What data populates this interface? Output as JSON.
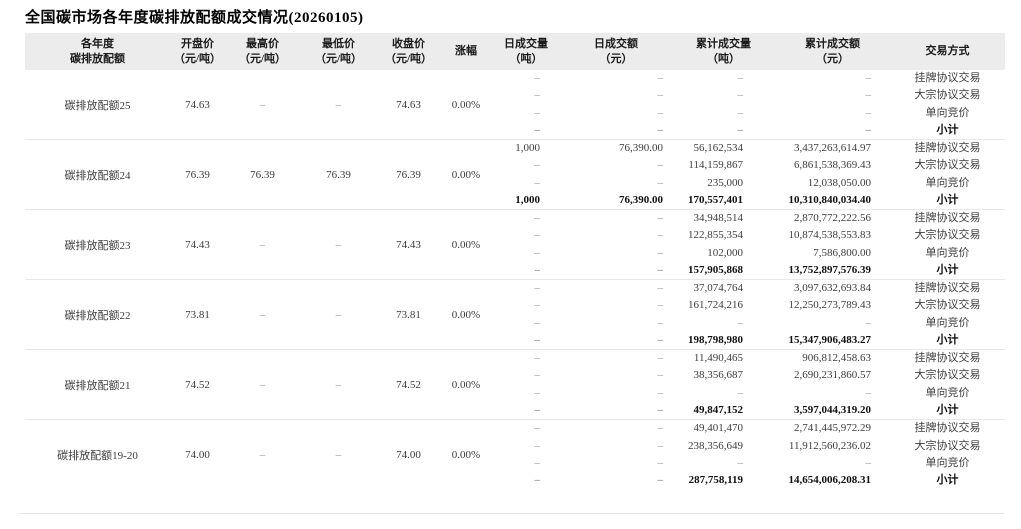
{
  "title": "全国碳市场各年度碳排放配额成交情况(20260105)",
  "colors": {
    "header_bg": "#ececec",
    "header_text": "#1a1a1a",
    "text": "#3d3d3d",
    "bold_text": "#111111",
    "dash": "#8c8c8c",
    "border": "#e8e8e8"
  },
  "table": {
    "headers": [
      {
        "id": "product",
        "line1": "各年度",
        "line2": "碳排放配额"
      },
      {
        "id": "open-price",
        "line1": "开盘价",
        "line2": "（元/吨）"
      },
      {
        "id": "high-price",
        "line1": "最高价",
        "line2": "（元/吨）"
      },
      {
        "id": "low-price",
        "line1": "最低价",
        "line2": "（元/吨）"
      },
      {
        "id": "close-price",
        "line1": "收盘价",
        "line2": "（元/吨）"
      },
      {
        "id": "change",
        "line1": "涨幅",
        "line2": ""
      },
      {
        "id": "daily-volume",
        "line1": "日成交量",
        "line2": "（吨）"
      },
      {
        "id": "daily-amount",
        "line1": "日成交额",
        "line2": "（元）"
      },
      {
        "id": "cum-volume",
        "line1": "累计成交量",
        "line2": "（吨）"
      },
      {
        "id": "cum-amount",
        "line1": "累计成交额",
        "line2": "（元）"
      },
      {
        "id": "trade-type",
        "line1": "交易方式",
        "line2": ""
      }
    ],
    "blocks": [
      {
        "product": "碳排放配额25",
        "open": "74.63",
        "high": "–",
        "low": "–",
        "close": "74.63",
        "change": "0.00%",
        "rows": [
          {
            "daily_volume": "–",
            "daily_amount": "–",
            "cum_volume": "–",
            "cum_amount": "–",
            "trade_type": "挂牌协议交易",
            "bold": false
          },
          {
            "daily_volume": "–",
            "daily_amount": "–",
            "cum_volume": "–",
            "cum_amount": "–",
            "trade_type": "大宗协议交易",
            "bold": false
          },
          {
            "daily_volume": "–",
            "daily_amount": "–",
            "cum_volume": "–",
            "cum_amount": "–",
            "trade_type": "单向竞价",
            "bold": false
          },
          {
            "daily_volume": "–",
            "daily_amount": "–",
            "cum_volume": "–",
            "cum_amount": "–",
            "trade_type": "小计",
            "bold": true
          }
        ]
      },
      {
        "product": "碳排放配额24",
        "open": "76.39",
        "high": "76.39",
        "low": "76.39",
        "close": "76.39",
        "change": "0.00%",
        "rows": [
          {
            "daily_volume": "1,000",
            "daily_amount": "76,390.00",
            "cum_volume": "56,162,534",
            "cum_amount": "3,437,263,614.97",
            "trade_type": "挂牌协议交易",
            "bold": false
          },
          {
            "daily_volume": "–",
            "daily_amount": "–",
            "cum_volume": "114,159,867",
            "cum_amount": "6,861,538,369.43",
            "trade_type": "大宗协议交易",
            "bold": false
          },
          {
            "daily_volume": "–",
            "daily_amount": "–",
            "cum_volume": "235,000",
            "cum_amount": "12,038,050.00",
            "trade_type": "单向竞价",
            "bold": false
          },
          {
            "daily_volume": "1,000",
            "daily_amount": "76,390.00",
            "cum_volume": "170,557,401",
            "cum_amount": "10,310,840,034.40",
            "trade_type": "小计",
            "bold": true
          }
        ]
      },
      {
        "product": "碳排放配额23",
        "open": "74.43",
        "high": "–",
        "low": "–",
        "close": "74.43",
        "change": "0.00%",
        "rows": [
          {
            "daily_volume": "–",
            "daily_amount": "–",
            "cum_volume": "34,948,514",
            "cum_amount": "2,870,772,222.56",
            "trade_type": "挂牌协议交易",
            "bold": false
          },
          {
            "daily_volume": "–",
            "daily_amount": "–",
            "cum_volume": "122,855,354",
            "cum_amount": "10,874,538,553.83",
            "trade_type": "大宗协议交易",
            "bold": false
          },
          {
            "daily_volume": "–",
            "daily_amount": "–",
            "cum_volume": "102,000",
            "cum_amount": "7,586,800.00",
            "trade_type": "单向竞价",
            "bold": false
          },
          {
            "daily_volume": "–",
            "daily_amount": "–",
            "cum_volume": "157,905,868",
            "cum_amount": "13,752,897,576.39",
            "trade_type": "小计",
            "bold": true
          }
        ]
      },
      {
        "product": "碳排放配额22",
        "open": "73.81",
        "high": "–",
        "low": "–",
        "close": "73.81",
        "change": "0.00%",
        "rows": [
          {
            "daily_volume": "–",
            "daily_amount": "–",
            "cum_volume": "37,074,764",
            "cum_amount": "3,097,632,693.84",
            "trade_type": "挂牌协议交易",
            "bold": false
          },
          {
            "daily_volume": "–",
            "daily_amount": "–",
            "cum_volume": "161,724,216",
            "cum_amount": "12,250,273,789.43",
            "trade_type": "大宗协议交易",
            "bold": false
          },
          {
            "daily_volume": "–",
            "daily_amount": "–",
            "cum_volume": "–",
            "cum_amount": "–",
            "trade_type": "单向竞价",
            "bold": false
          },
          {
            "daily_volume": "–",
            "daily_amount": "–",
            "cum_volume": "198,798,980",
            "cum_amount": "15,347,906,483.27",
            "trade_type": "小计",
            "bold": true
          }
        ]
      },
      {
        "product": "碳排放配额21",
        "open": "74.52",
        "high": "–",
        "low": "–",
        "close": "74.52",
        "change": "0.00%",
        "rows": [
          {
            "daily_volume": "–",
            "daily_amount": "–",
            "cum_volume": "11,490,465",
            "cum_amount": "906,812,458.63",
            "trade_type": "挂牌协议交易",
            "bold": false
          },
          {
            "daily_volume": "–",
            "daily_amount": "–",
            "cum_volume": "38,356,687",
            "cum_amount": "2,690,231,860.57",
            "trade_type": "大宗协议交易",
            "bold": false
          },
          {
            "daily_volume": "–",
            "daily_amount": "–",
            "cum_volume": "–",
            "cum_amount": "–",
            "trade_type": "单向竞价",
            "bold": false
          },
          {
            "daily_volume": "–",
            "daily_amount": "–",
            "cum_volume": "49,847,152",
            "cum_amount": "3,597,044,319.20",
            "trade_type": "小计",
            "bold": true
          }
        ]
      },
      {
        "product": "碳排放配额19-20",
        "open": "74.00",
        "high": "–",
        "low": "–",
        "close": "74.00",
        "change": "0.00%",
        "rows": [
          {
            "daily_volume": "–",
            "daily_amount": "–",
            "cum_volume": "49,401,470",
            "cum_amount": "2,741,445,972.29",
            "trade_type": "挂牌协议交易",
            "bold": false
          },
          {
            "daily_volume": "–",
            "daily_amount": "–",
            "cum_volume": "238,356,649",
            "cum_amount": "11,912,560,236.02",
            "trade_type": "大宗协议交易",
            "bold": false
          },
          {
            "daily_volume": "–",
            "daily_amount": "–",
            "cum_volume": "–",
            "cum_amount": "–",
            "trade_type": "单向竞价",
            "bold": false
          },
          {
            "daily_volume": "–",
            "daily_amount": "–",
            "cum_volume": "287,758,119",
            "cum_amount": "14,654,006,208.31",
            "trade_type": "小计",
            "bold": true
          }
        ]
      }
    ]
  }
}
